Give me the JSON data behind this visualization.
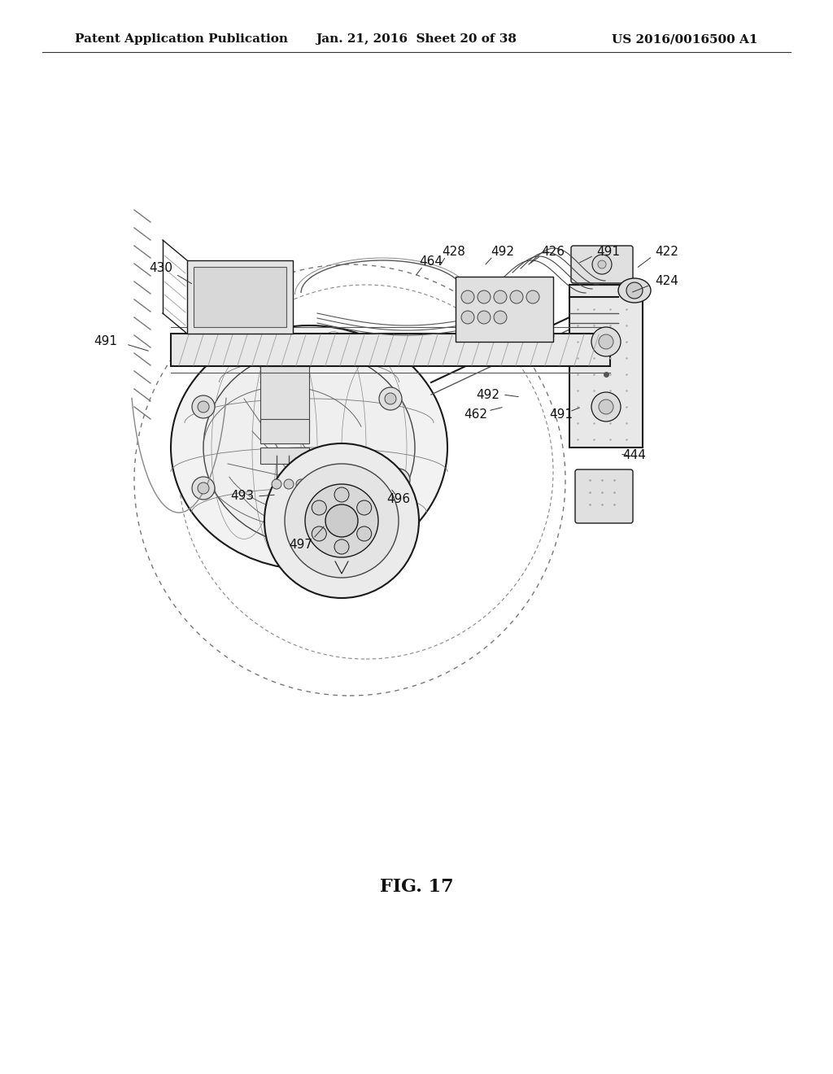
{
  "bg_color": "#ffffff",
  "header_left": "Patent Application Publication",
  "header_center": "Jan. 21, 2016  Sheet 20 of 38",
  "header_right": "US 2016/0016500 A1",
  "figure_label": "FIG. 17",
  "header_fontsize": 11,
  "label_fontsize": 11,
  "fig_label_fontsize": 16,
  "lc": "#1a1a1a",
  "lc_mid": "#555555",
  "lc_light": "#888888",
  "fc_frame": "#e8e8e8",
  "fc_hatch": "#d0d0d0",
  "fc_white": "#ffffff"
}
